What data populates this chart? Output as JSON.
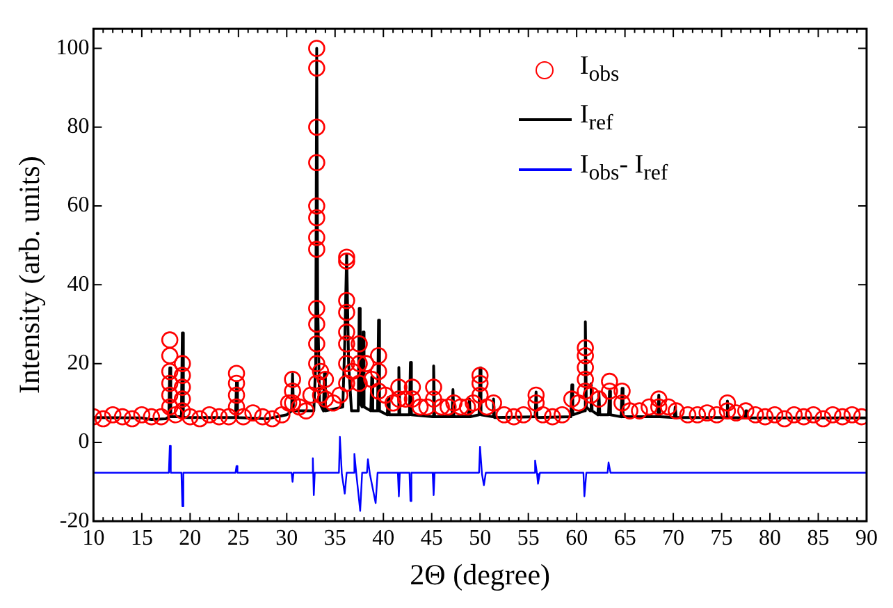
{
  "chart_data": {
    "type": "line",
    "xlabel": "2Θ (degree)",
    "ylabel": "Intensity (arb. units)",
    "xlim": [
      10,
      90
    ],
    "ylim": [
      -20,
      105
    ],
    "xticks": [
      10,
      15,
      20,
      25,
      30,
      35,
      40,
      45,
      50,
      55,
      60,
      65,
      70,
      75,
      80,
      85,
      90
    ],
    "yticks": [
      -20,
      0,
      20,
      40,
      60,
      80,
      100
    ],
    "legend": "top right",
    "series": [
      {
        "name": "I$_{obs}$",
        "type": "scatter",
        "marker": "circle",
        "color": "#ff0000",
        "x": [
          10,
          11,
          12,
          13,
          14,
          15,
          16,
          17,
          17.9,
          17.9,
          17.9,
          17.9,
          17.9,
          17.9,
          18.5,
          19.2,
          19.2,
          19.2,
          19.2,
          19.2,
          20,
          21,
          22,
          23,
          24,
          24.8,
          24.8,
          24.8,
          24.8,
          25.5,
          26.5,
          27.5,
          28.5,
          29.5,
          30.2,
          30.6,
          30.6,
          30.6,
          31.3,
          32,
          32.5,
          33.1,
          33.1,
          33.1,
          33.1,
          33.1,
          33.1,
          33.1,
          33.1,
          33.1,
          33.1,
          33.1,
          33.1,
          33.1,
          33.5,
          33.5,
          34,
          34,
          34.8,
          35.5,
          36.2,
          36.2,
          36.2,
          36.2,
          36.2,
          36.2,
          36.2,
          36.2,
          36.8,
          37.5,
          37.5,
          37.5,
          38.2,
          38.8,
          39.5,
          39.5,
          39.5,
          40.2,
          41,
          41.6,
          41.6,
          42.3,
          43,
          43,
          43.8,
          44.5,
          45.2,
          45.2,
          46,
          46.7,
          47.3,
          48,
          48.7,
          49.3,
          50,
          50,
          50,
          50.7,
          51.4,
          52.5,
          53.5,
          54.5,
          55.8,
          55.8,
          56.5,
          57.5,
          58.5,
          59.5,
          60.2,
          60.9,
          60.9,
          60.9,
          60.9,
          60.9,
          61.5,
          62.3,
          63.4,
          63.4,
          64.7,
          64.7,
          65.5,
          66.5,
          67.5,
          68.5,
          68.5,
          69.5,
          70.3,
          71.5,
          72.5,
          73.5,
          74.5,
          75.6,
          75.6,
          76.5,
          77.5,
          78.5,
          79.5,
          80.5,
          81.5,
          82.5,
          83.5,
          84.5,
          85.5,
          86.5,
          87.5,
          88.5,
          89.5
        ],
        "values": [
          6.5,
          6,
          7,
          6.5,
          6,
          7,
          6.5,
          6.5,
          26,
          22,
          18,
          15,
          12,
          9,
          7,
          20,
          17,
          14,
          11,
          8,
          6.5,
          6,
          7,
          6.5,
          6.5,
          17.5,
          15,
          12,
          9,
          6.5,
          7.5,
          6.5,
          6,
          7,
          10,
          16,
          13,
          10,
          9,
          8,
          12,
          100,
          95,
          80,
          71,
          60,
          57,
          52,
          49,
          34,
          30,
          25,
          20,
          15,
          18,
          12,
          16,
          11,
          10,
          12,
          47,
          46,
          36,
          33,
          28,
          25,
          20,
          15,
          18,
          25,
          20,
          15,
          20,
          16,
          22,
          18,
          13,
          12,
          10,
          14,
          11,
          11,
          14,
          11,
          9,
          9,
          14,
          11,
          9,
          9,
          10,
          9,
          9,
          10,
          17,
          15,
          12,
          9,
          10,
          7,
          6.5,
          7,
          12,
          10,
          7,
          6.5,
          7,
          11,
          10,
          24,
          22,
          19,
          16,
          13,
          12,
          11,
          15.5,
          13,
          13,
          10,
          8,
          8,
          9,
          11,
          9,
          9,
          8,
          7,
          7,
          7.5,
          7,
          10,
          8,
          7.5,
          8,
          7,
          6.5,
          7,
          6,
          7,
          6.5,
          7,
          6,
          7,
          6.5,
          7,
          6.5
        ]
      },
      {
        "name": "I$_{ref}$",
        "type": "line",
        "color": "#000000",
        "x": [
          10,
          15,
          16,
          17.5,
          17.8,
          17.9,
          18,
          19.1,
          19.2,
          19.3,
          24.7,
          24.8,
          24.9,
          28,
          30,
          30.5,
          30.6,
          30.7,
          32.8,
          33,
          33.1,
          33.2,
          33.4,
          33.8,
          33.9,
          34,
          35.8,
          36,
          36.2,
          36.4,
          36.7,
          37.4,
          37.5,
          37.6,
          37.8,
          37.9,
          38,
          38.7,
          38.8,
          38.9,
          39.4,
          39.5,
          39.6,
          40.4,
          40.5,
          40.6,
          41.5,
          41.6,
          41.7,
          42.7,
          42.8,
          42.9,
          45.1,
          45.2,
          45.3,
          47.1,
          47.2,
          47.3,
          48.8,
          48.9,
          49,
          49.9,
          50,
          50.1,
          51.3,
          51.4,
          51.5,
          55.7,
          55.8,
          55.9,
          59.4,
          59.5,
          59.6,
          60.8,
          60.9,
          61,
          61.4,
          61.5,
          61.6,
          62.2,
          62.3,
          62.4,
          63.3,
          63.4,
          63.5,
          64.6,
          64.7,
          64.8,
          68.4,
          68.5,
          68.6,
          70.1,
          70.2,
          70.3,
          75.5,
          75.6,
          75.7,
          77.4,
          77.5,
          77.6,
          90
        ],
        "values": [
          6.3,
          6.2,
          5.8,
          6,
          6.5,
          18.9,
          6.5,
          6.5,
          27.8,
          6.3,
          6.3,
          15.4,
          6.3,
          6,
          7,
          8,
          17.4,
          8,
          8,
          20,
          100,
          35,
          10,
          8,
          17.7,
          8,
          9,
          25,
          47.7,
          20,
          8,
          8,
          34,
          10,
          9,
          28,
          9,
          8,
          16.6,
          8,
          8,
          31,
          8,
          7,
          11.4,
          7,
          7,
          19,
          7,
          7,
          20.3,
          7,
          6.5,
          19.4,
          6.5,
          6.5,
          13.4,
          6.5,
          6.5,
          11,
          6.5,
          7,
          18.9,
          7,
          6.5,
          11,
          6.3,
          6.5,
          12.8,
          6.3,
          6.5,
          14.6,
          7,
          8,
          30.6,
          9,
          8,
          14.9,
          8,
          7,
          12.6,
          7,
          7,
          13,
          7,
          6.5,
          13.7,
          6.5,
          6.5,
          12,
          6.5,
          6.3,
          9,
          6.3,
          6.3,
          10.5,
          6.3,
          6.2,
          8,
          6.2,
          6.2
        ]
      },
      {
        "name": "I$_{obs}$- I$_{ref}$",
        "type": "line",
        "color": "#0000ff",
        "x": [
          10,
          17.8,
          17.9,
          18,
          19.1,
          19.2,
          19.3,
          24.7,
          24.8,
          24.9,
          30.5,
          30.6,
          30.7,
          32.6,
          32.7,
          32.8,
          32.9,
          35.4,
          35.5,
          35.7,
          36,
          36.2,
          36.9,
          37,
          37.2,
          37.6,
          37.8,
          38.3,
          38.4,
          38.6,
          39.2,
          39.4,
          41.5,
          41.6,
          41.7,
          42.7,
          42.8,
          42.9,
          45.1,
          45.2,
          45.3,
          49.9,
          50,
          50.2,
          50.4,
          50.6,
          55.6,
          55.7,
          55.9,
          56,
          56.2,
          60.7,
          60.8,
          61,
          63.2,
          63.3,
          63.5,
          90
        ],
        "values": [
          -7.7,
          -7.7,
          -0.9,
          -7.7,
          -7.7,
          -16.2,
          -7.7,
          -7.7,
          -6,
          -7.7,
          -7.7,
          -10,
          -7.7,
          -7.7,
          -4,
          -13.4,
          -7.7,
          -7.7,
          1.4,
          -8,
          -13,
          -7.7,
          -7.7,
          -2.9,
          -8,
          -17.4,
          -7.7,
          -7.7,
          -4.3,
          -8,
          -15.4,
          -7.7,
          -7.7,
          -13.7,
          -7.7,
          -7.7,
          -14.9,
          -7.7,
          -7.7,
          -13.4,
          -7.7,
          -7.7,
          -1.1,
          -8,
          -10.9,
          -7.7,
          -7.7,
          -4.6,
          -8,
          -10.5,
          -7.7,
          -7.7,
          -13.7,
          -7.7,
          -7.7,
          -5.1,
          -7.7,
          -7.7
        ]
      }
    ]
  }
}
